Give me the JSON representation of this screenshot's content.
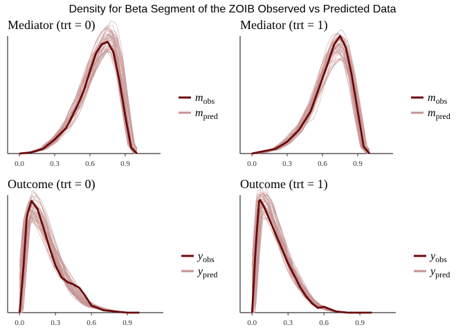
{
  "title": "Density for Beta Segment of the ZOIB Observed vs Predicted Data",
  "colors": {
    "obs": "#6b0a0a",
    "pred": "#c49393",
    "axis": "#333333"
  },
  "chart_data": [
    {
      "type": "line",
      "title": "Mediator (trt = 0)",
      "xticks": [
        "0.0",
        "0.3",
        "0.6",
        "0.9"
      ],
      "xlim": [
        -0.1,
        1.2
      ],
      "ylim": [
        0,
        1.0
      ],
      "legend": [
        "m_obs",
        "m_pred"
      ],
      "obs": {
        "x": [
          0.0,
          0.1,
          0.2,
          0.3,
          0.4,
          0.5,
          0.55,
          0.6,
          0.65,
          0.7,
          0.75,
          0.8,
          0.85,
          0.9,
          0.95,
          1.0
        ],
        "y": [
          0.0,
          0.01,
          0.04,
          0.12,
          0.22,
          0.42,
          0.54,
          0.7,
          0.85,
          0.93,
          0.95,
          0.86,
          0.62,
          0.32,
          0.05,
          0.0
        ]
      },
      "pred_center": {
        "x": [
          0.0,
          0.1,
          0.2,
          0.3,
          0.4,
          0.5,
          0.55,
          0.6,
          0.65,
          0.7,
          0.75,
          0.8,
          0.85,
          0.9,
          0.95,
          1.0
        ],
        "y": [
          0.0,
          0.01,
          0.04,
          0.12,
          0.24,
          0.44,
          0.56,
          0.7,
          0.83,
          0.93,
          1.0,
          0.98,
          0.78,
          0.42,
          0.08,
          0.0
        ]
      },
      "pred_draws": 40
    },
    {
      "type": "line",
      "title": "Mediator (trt = 1)",
      "xticks": [
        "0.0",
        "0.3",
        "0.6",
        "0.9"
      ],
      "xlim": [
        -0.1,
        1.2
      ],
      "ylim": [
        0,
        1.0
      ],
      "legend": [
        "m_obs",
        "m_pred"
      ],
      "obs": {
        "x": [
          0.0,
          0.1,
          0.2,
          0.3,
          0.4,
          0.5,
          0.55,
          0.6,
          0.65,
          0.7,
          0.75,
          0.8,
          0.85,
          0.9,
          0.95,
          1.0
        ],
        "y": [
          0.0,
          0.02,
          0.04,
          0.1,
          0.2,
          0.36,
          0.5,
          0.64,
          0.78,
          0.93,
          1.0,
          0.9,
          0.66,
          0.36,
          0.06,
          0.0
        ]
      },
      "pred_center": {
        "x": [
          0.0,
          0.1,
          0.2,
          0.3,
          0.4,
          0.5,
          0.55,
          0.6,
          0.65,
          0.7,
          0.75,
          0.8,
          0.85,
          0.9,
          0.95,
          1.0
        ],
        "y": [
          0.0,
          0.01,
          0.04,
          0.1,
          0.2,
          0.38,
          0.52,
          0.66,
          0.8,
          0.9,
          0.94,
          0.88,
          0.66,
          0.36,
          0.06,
          0.0
        ]
      },
      "pred_draws": 40
    },
    {
      "type": "line",
      "title": "Outcome (trt = 0)",
      "xticks": [
        "0.0",
        "0.3",
        "0.6",
        "0.9"
      ],
      "xlim": [
        -0.1,
        1.2
      ],
      "ylim": [
        0,
        1.0
      ],
      "legend": [
        "y_obs",
        "y_pred"
      ],
      "obs": {
        "x": [
          0.0,
          0.03,
          0.06,
          0.1,
          0.15,
          0.2,
          0.25,
          0.3,
          0.35,
          0.4,
          0.45,
          0.5,
          0.55,
          0.6,
          0.7,
          0.8,
          0.9,
          1.0
        ],
        "y": [
          0.0,
          0.35,
          0.82,
          0.95,
          0.88,
          0.72,
          0.55,
          0.4,
          0.3,
          0.26,
          0.24,
          0.21,
          0.14,
          0.06,
          0.02,
          0.01,
          0.0,
          0.0
        ]
      },
      "pred_center": {
        "x": [
          0.0,
          0.03,
          0.06,
          0.1,
          0.15,
          0.2,
          0.25,
          0.3,
          0.35,
          0.4,
          0.45,
          0.5,
          0.55,
          0.6,
          0.7,
          0.8,
          0.9,
          1.0
        ],
        "y": [
          0.0,
          0.4,
          0.8,
          0.92,
          0.88,
          0.78,
          0.64,
          0.5,
          0.38,
          0.28,
          0.2,
          0.14,
          0.09,
          0.06,
          0.03,
          0.01,
          0.0,
          0.0
        ]
      },
      "pred_draws": 40
    },
    {
      "type": "line",
      "title": "Outcome (trt = 1)",
      "xticks": [
        "0.0",
        "0.3",
        "0.6",
        "0.9"
      ],
      "xlim": [
        -0.1,
        1.2
      ],
      "ylim": [
        0,
        1.0
      ],
      "legend": [
        "y_obs",
        "y_pred"
      ],
      "obs": {
        "x": [
          0.0,
          0.03,
          0.06,
          0.1,
          0.15,
          0.2,
          0.25,
          0.3,
          0.35,
          0.4,
          0.45,
          0.5,
          0.55,
          0.6,
          0.65,
          0.7,
          0.8,
          0.9,
          1.0
        ],
        "y": [
          0.0,
          0.55,
          0.97,
          0.9,
          0.78,
          0.66,
          0.54,
          0.42,
          0.32,
          0.22,
          0.14,
          0.08,
          0.04,
          0.05,
          0.03,
          0.01,
          0.0,
          0.0,
          0.0
        ]
      },
      "pred_center": {
        "x": [
          0.0,
          0.03,
          0.06,
          0.1,
          0.15,
          0.2,
          0.25,
          0.3,
          0.35,
          0.4,
          0.45,
          0.5,
          0.55,
          0.6,
          0.65,
          0.7,
          0.8,
          0.9,
          1.0
        ],
        "y": [
          0.0,
          0.5,
          0.92,
          0.95,
          0.88,
          0.74,
          0.6,
          0.46,
          0.34,
          0.24,
          0.16,
          0.1,
          0.06,
          0.04,
          0.02,
          0.01,
          0.0,
          0.0,
          0.0
        ]
      },
      "pred_draws": 40
    }
  ]
}
